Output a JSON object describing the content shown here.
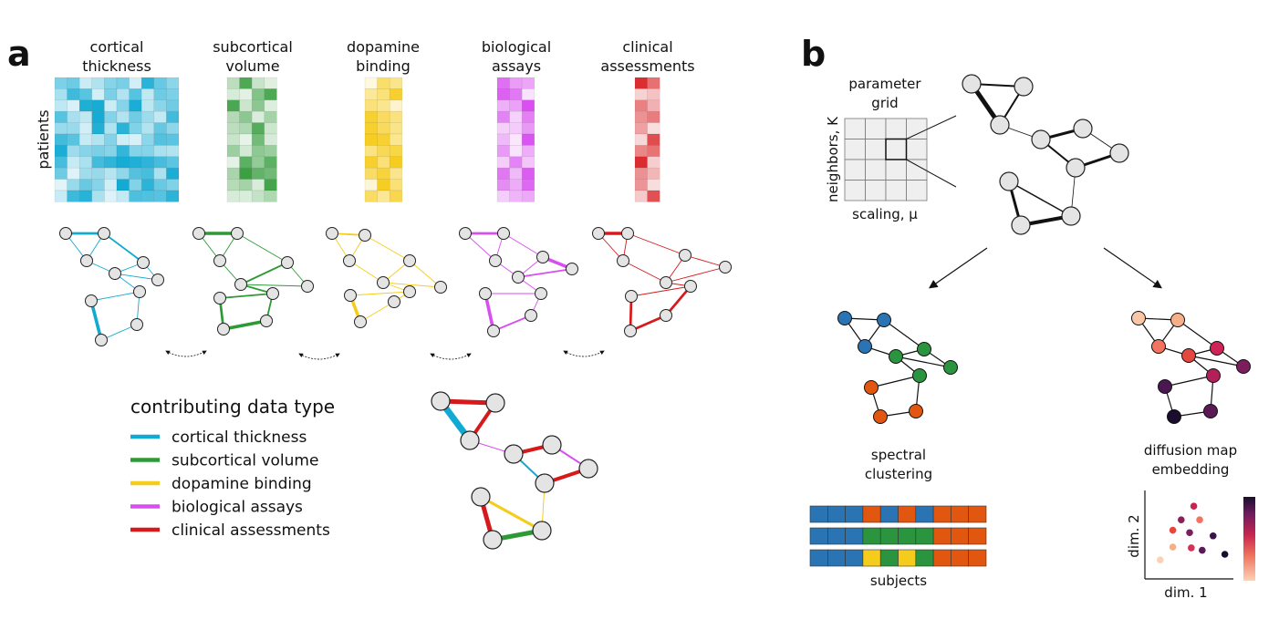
{
  "panel_a": {
    "letter": "a",
    "columns": [
      {
        "line1": "cortical",
        "line2": "thickness",
        "color": "#11aad3"
      },
      {
        "line1": "subcortical",
        "line2": "volume",
        "color": "#2e9a36"
      },
      {
        "line1": "dopamine",
        "line2": "binding",
        "color": "#f6cc1c"
      },
      {
        "line1": "biological",
        "line2": "assays",
        "color": "#d94ef0"
      },
      {
        "line1": "clinical",
        "line2": "assessments",
        "color": "#d7191c"
      }
    ],
    "row_axis_label": "patients",
    "legend": {
      "title": "contributing data type",
      "items": [
        {
          "label": "cortical thickness",
          "color": "#11aad3"
        },
        {
          "label": "subcortical volume",
          "color": "#2e9a36"
        },
        {
          "label": "dopamine binding",
          "color": "#f6cc1c"
        },
        {
          "label": "biological assays",
          "color": "#d94ef0"
        },
        {
          "label": "clinical assessments",
          "color": "#d7191c"
        }
      ]
    }
  },
  "panel_b": {
    "letter": "b",
    "grid_title_line1": "parameter",
    "grid_title_line2": "grid",
    "grid_y_label": "neighbors, K",
    "grid_x_label": "scaling, μ",
    "clustering_line1": "spectral",
    "clustering_line2": "clustering",
    "embedding_line1": "diffusion map",
    "embedding_line2": "embedding",
    "subjects_label": "subjects",
    "embed_x_label": "dim. 1",
    "embed_y_label": "dim. 2",
    "cluster_colors": {
      "blue": "#2a74b4",
      "green": "#2a943e",
      "orange": "#e25710",
      "yellow": "#f6cc1c"
    }
  },
  "chart_data": {
    "type": "scatter",
    "xlabel": "dim. 1",
    "ylabel": "dim. 2",
    "points": [
      {
        "x": 0.55,
        "y": 0.85
      },
      {
        "x": 0.4,
        "y": 0.68
      },
      {
        "x": 0.62,
        "y": 0.68
      },
      {
        "x": 0.3,
        "y": 0.55
      },
      {
        "x": 0.5,
        "y": 0.52
      },
      {
        "x": 0.78,
        "y": 0.48
      },
      {
        "x": 0.3,
        "y": 0.34
      },
      {
        "x": 0.52,
        "y": 0.33
      },
      {
        "x": 0.65,
        "y": 0.3
      },
      {
        "x": 0.92,
        "y": 0.25
      },
      {
        "x": 0.15,
        "y": 0.18
      }
    ]
  }
}
